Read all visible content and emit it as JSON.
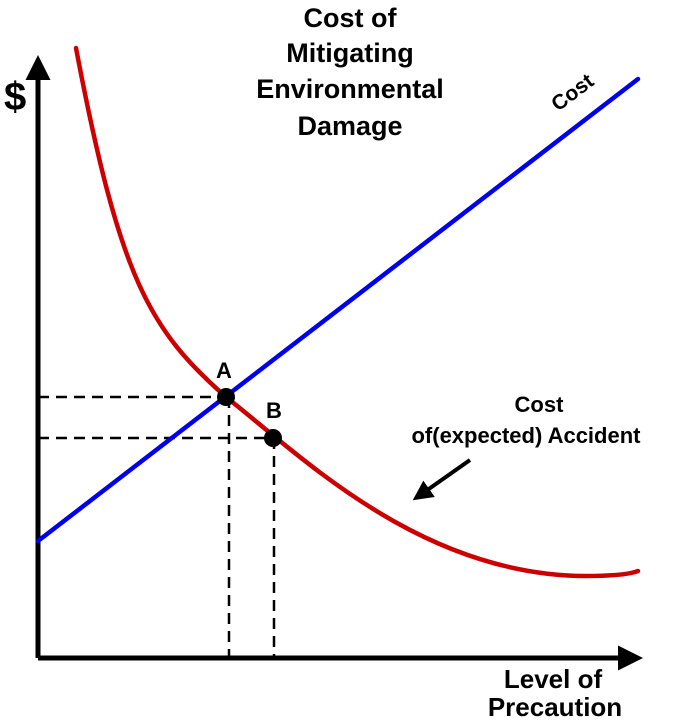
{
  "title": {
    "lines": [
      "Cost of",
      "Mitigating",
      "Environmental",
      "Damage"
    ]
  },
  "axes": {
    "y_label": "$",
    "x_label_lines": [
      "Level of",
      "Precaution"
    ]
  },
  "curves": {
    "cost": {
      "label": "Cost",
      "color": "#0000ee"
    },
    "accident": {
      "label_lines": [
        "Cost",
        "of(expected) Accident"
      ],
      "color": "#cc0000"
    }
  },
  "points": {
    "a": {
      "label": "A"
    },
    "b": {
      "label": "B"
    }
  }
}
